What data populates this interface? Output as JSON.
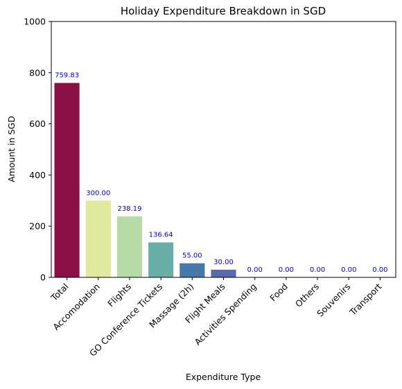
{
  "chart_data": {
    "type": "bar",
    "title": "Holiday Expenditure Breakdown in SGD",
    "xlabel": "Expenditure Type",
    "ylabel": "Amount in SGD",
    "ylim": [
      0,
      1000
    ],
    "yticks": [
      0,
      200,
      400,
      600,
      800,
      1000
    ],
    "grid": false,
    "categories": [
      "Total",
      "Accomodation",
      "Flights",
      "GO Conference Tickets",
      "Massage (2h)",
      "Flight Meals",
      "Activities Spending",
      "Food",
      "Others",
      "Souvenirs",
      "Transport"
    ],
    "values": [
      759.83,
      300.0,
      238.19,
      136.64,
      55.0,
      30.0,
      0.0,
      0.0,
      0.0,
      0.0,
      0.0
    ],
    "value_labels": [
      "759.83",
      "300.00",
      "238.19",
      "136.64",
      "55.00",
      "30.00",
      "0.00",
      "0.00",
      "0.00",
      "0.00",
      "0.00"
    ],
    "colors": [
      "#8b1145",
      "#e0ea9f",
      "#b6dba6",
      "#68ada6",
      "#4878a8",
      "#5a6aab",
      "#5e4fa2",
      "#5e4fa2",
      "#5e4fa2",
      "#5e4fa2",
      "#5e4fa2"
    ],
    "value_label_color": "#0000cc"
  }
}
